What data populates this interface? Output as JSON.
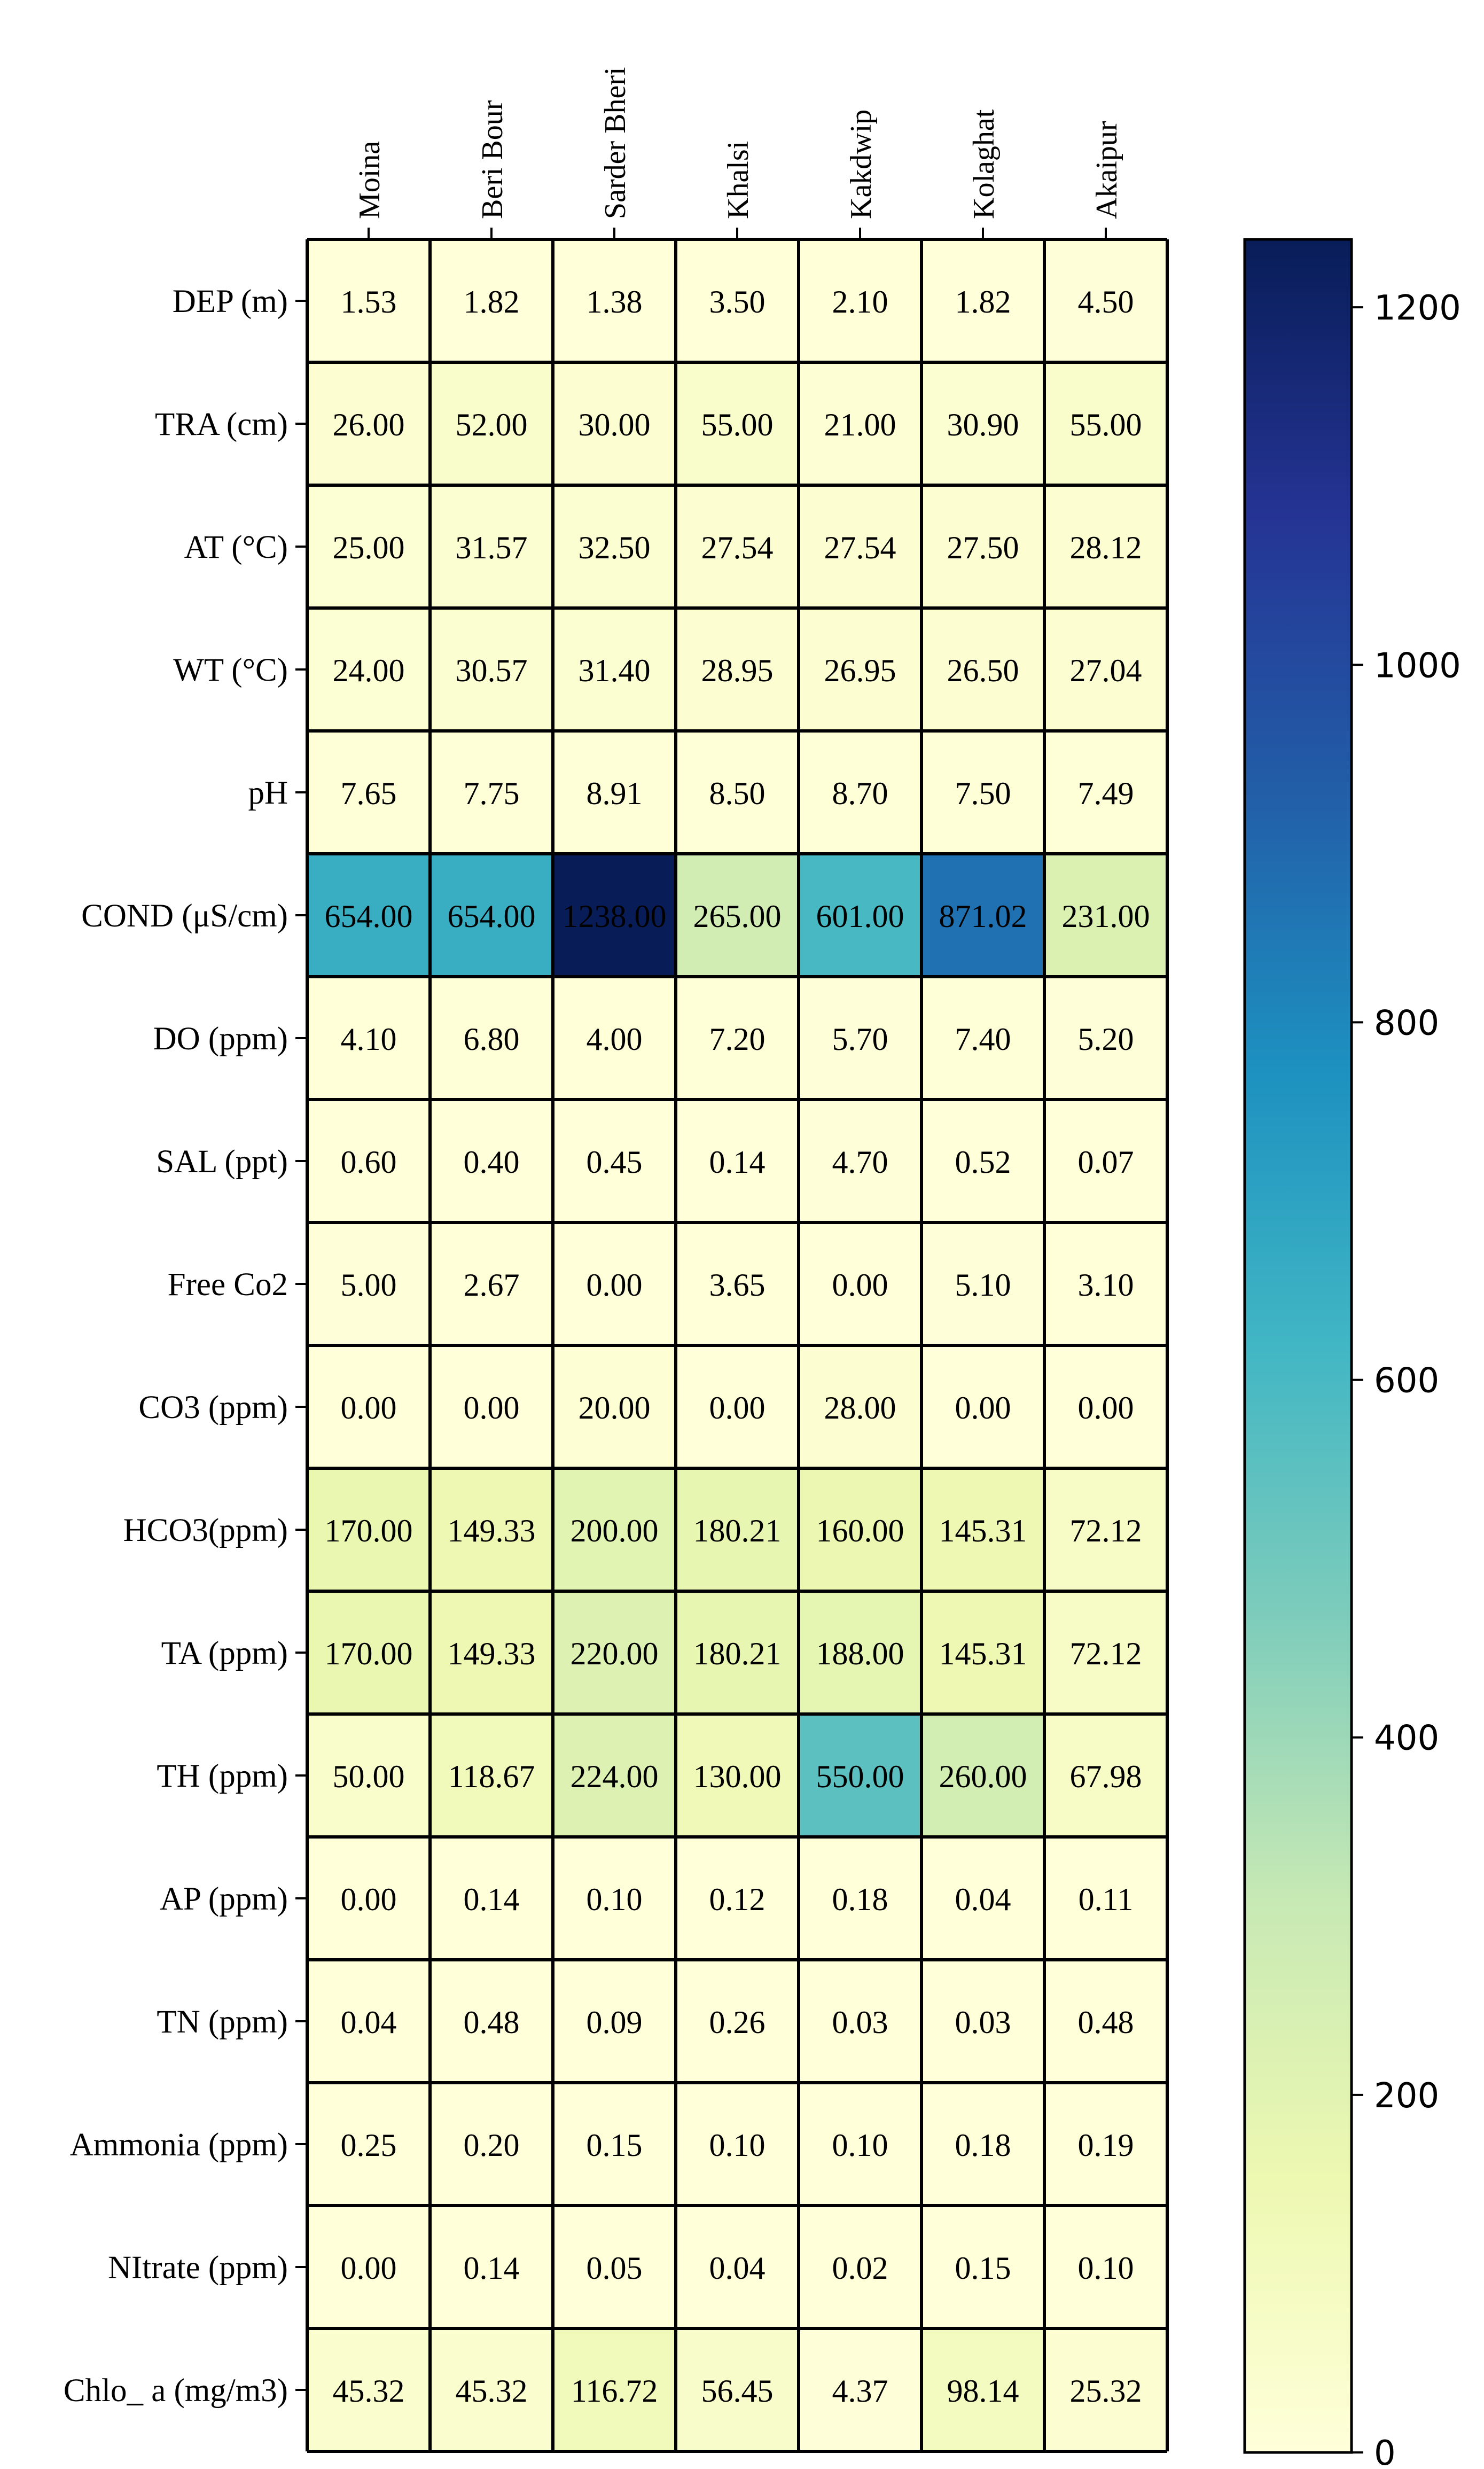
{
  "chart_data": {
    "type": "heatmap",
    "title": "",
    "xlabel": "",
    "ylabel": "",
    "columns": [
      "Moina",
      "Beri Bour",
      "Sarder Bheri",
      "Khalsi",
      "Kakdwip",
      "Kolaghat",
      "Akaipur"
    ],
    "rows": [
      "DEP (m)",
      "TRA (cm)",
      "AT (°C)",
      "WT (°C)",
      "pH",
      "COND (μS/cm)",
      "DO (ppm)",
      "SAL (ppt)",
      "Free Co2",
      "CO3 (ppm)",
      "HCO3(ppm)",
      "TA (ppm)",
      "TH (ppm)",
      "AP (ppm)",
      "TN (ppm)",
      "Ammonia (ppm)",
      "NItrate (ppm)",
      "Chlo_ a (mg/m3)"
    ],
    "values": [
      [
        1.53,
        1.82,
        1.38,
        3.5,
        2.1,
        1.82,
        4.5
      ],
      [
        26.0,
        52.0,
        30.0,
        55.0,
        21.0,
        30.9,
        55.0
      ],
      [
        25.0,
        31.57,
        32.5,
        27.54,
        27.54,
        27.5,
        28.12
      ],
      [
        24.0,
        30.57,
        31.4,
        28.95,
        26.95,
        26.5,
        27.04
      ],
      [
        7.65,
        7.75,
        8.91,
        8.5,
        8.7,
        7.5,
        7.49
      ],
      [
        654.0,
        654.0,
        1238.0,
        265.0,
        601.0,
        871.02,
        231.0
      ],
      [
        4.1,
        6.8,
        4.0,
        7.2,
        5.7,
        7.4,
        5.2
      ],
      [
        0.6,
        0.4,
        0.45,
        0.14,
        4.7,
        0.52,
        0.07
      ],
      [
        5.0,
        2.67,
        0.0,
        3.65,
        0.0,
        5.1,
        3.1
      ],
      [
        0.0,
        0.0,
        20.0,
        0.0,
        28.0,
        0.0,
        0.0
      ],
      [
        170.0,
        149.33,
        200.0,
        180.21,
        160.0,
        145.31,
        72.12
      ],
      [
        170.0,
        149.33,
        220.0,
        180.21,
        188.0,
        145.31,
        72.12
      ],
      [
        50.0,
        118.67,
        224.0,
        130.0,
        550.0,
        260.0,
        67.98
      ],
      [
        0.0,
        0.14,
        0.1,
        0.12,
        0.18,
        0.04,
        0.11
      ],
      [
        0.04,
        0.48,
        0.09,
        0.26,
        0.03,
        0.03,
        0.48
      ],
      [
        0.25,
        0.2,
        0.15,
        0.1,
        0.1,
        0.18,
        0.19
      ],
      [
        0.0,
        0.14,
        0.05,
        0.04,
        0.02,
        0.15,
        0.1
      ],
      [
        45.32,
        45.32,
        116.72,
        56.45,
        4.37,
        98.14,
        25.32
      ]
    ],
    "value_format_decimals": 2,
    "colormap": "YlGnBu",
    "colorbar": {
      "range": [
        0,
        1238
      ],
      "ticks": [
        0,
        200,
        400,
        600,
        800,
        1000,
        1200
      ],
      "tick_labels": [
        "0",
        "200",
        "400",
        "600",
        "800",
        "1000",
        "1200"
      ]
    },
    "colormap_stops": [
      "#ffffd9",
      "#edf8b1",
      "#c7e9b4",
      "#7fcdbb",
      "#41b6c4",
      "#1d91c0",
      "#225ea8",
      "#253494",
      "#081d58"
    ],
    "grid": true,
    "legend": "colorbar-right"
  }
}
